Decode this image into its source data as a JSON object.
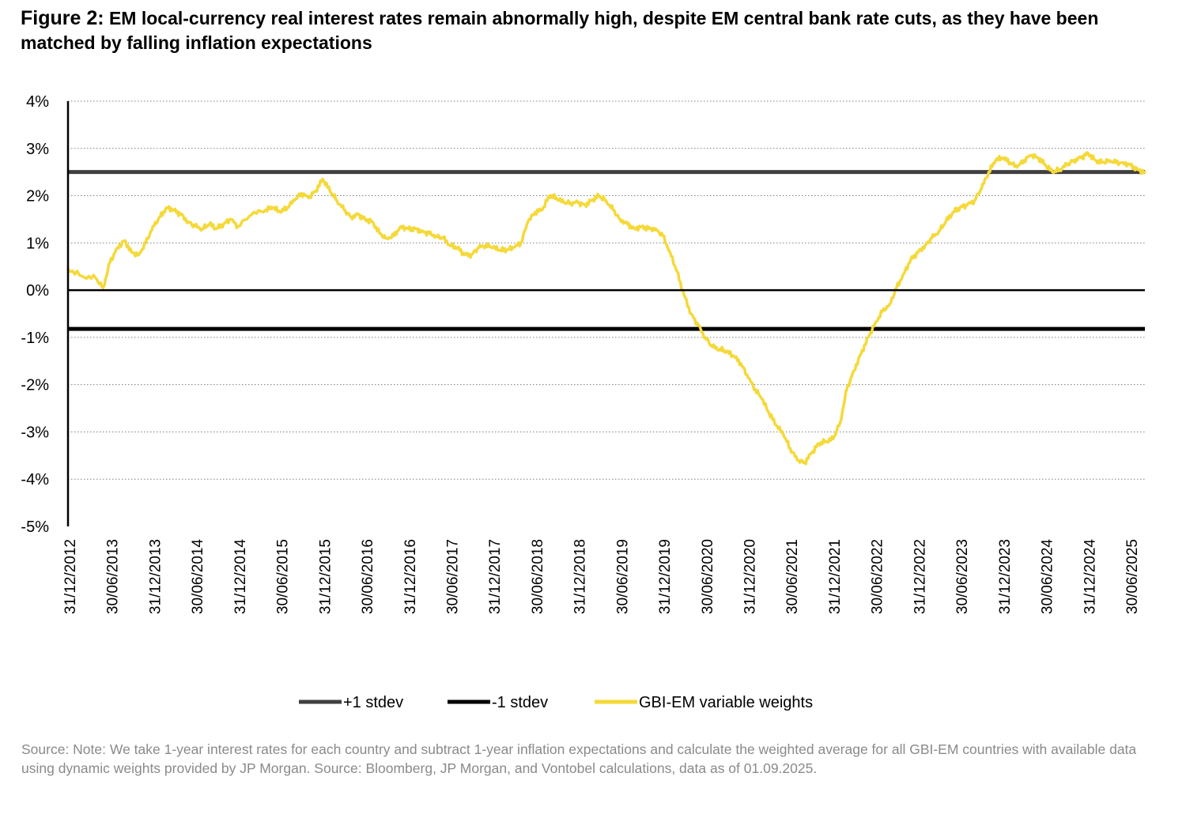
{
  "title": {
    "prefix": "Figure 2:",
    "text": "EM local-currency real interest rates remain abnormally high, despite EM central bank rate cuts, as they have been matched by falling inflation expectations"
  },
  "source": "Source: Note: We take 1-year interest rates for each country and subtract 1-year inflation expectations and calculate the weighted average for all GBI-EM countries with available data using dynamic weights provided by JP Morgan. Source: Bloomberg, JP Morgan, and Vontobel calculations, data as of 01.09.2025.",
  "colors": {
    "plus_stdev": "#404040",
    "minus_stdev": "#000000",
    "series": "#F5D93A",
    "grid": "#7f7f7f"
  },
  "chart_data": {
    "type": "line",
    "ylim": [
      -5,
      4
    ],
    "y_ticks": [
      4,
      3,
      2,
      1,
      0,
      -1,
      -2,
      -3,
      -4,
      -5
    ],
    "y_tick_labels": [
      "4%",
      "3%",
      "2%",
      "1%",
      "0%",
      "-1%",
      "-2%",
      "-3%",
      "-4%",
      "-5%"
    ],
    "y_unit": "%",
    "x_tick_labels": [
      "31/12/2012",
      "30/06/2013",
      "31/12/2013",
      "30/06/2014",
      "31/12/2014",
      "30/06/2015",
      "31/12/2015",
      "30/06/2016",
      "31/12/2016",
      "30/06/2017",
      "31/12/2017",
      "30/06/2018",
      "31/12/2018",
      "30/06/2019",
      "31/12/2019",
      "30/06/2020",
      "31/12/2020",
      "30/06/2021",
      "31/12/2021",
      "30/06/2022",
      "31/12/2022",
      "30/06/2023",
      "31/12/2023",
      "30/06/2024",
      "31/12/2024",
      "30/06/2025"
    ],
    "x_range": [
      "31/12/2012",
      "01/09/2025"
    ],
    "grid": "horizontal dotted",
    "legend_position": "bottom",
    "reference_lines": [
      {
        "name": "+1 stdev",
        "y": 2.5
      },
      {
        "name": "-1 stdev",
        "y": -0.82
      }
    ],
    "series": [
      {
        "name": "GBI-EM variable weights",
        "points": [
          [
            "31/12/2012",
            0.45
          ],
          [
            "28/02/2013",
            0.3
          ],
          [
            "30/04/2013",
            0.25
          ],
          [
            "31/05/2013",
            0.05
          ],
          [
            "30/06/2013",
            0.6
          ],
          [
            "31/07/2013",
            0.9
          ],
          [
            "31/08/2013",
            1.05
          ],
          [
            "30/09/2013",
            0.8
          ],
          [
            "31/10/2013",
            0.75
          ],
          [
            "30/11/2013",
            1.0
          ],
          [
            "31/12/2013",
            1.35
          ],
          [
            "31/01/2014",
            1.55
          ],
          [
            "28/02/2014",
            1.75
          ],
          [
            "31/03/2014",
            1.7
          ],
          [
            "30/04/2014",
            1.6
          ],
          [
            "31/05/2014",
            1.45
          ],
          [
            "30/06/2014",
            1.35
          ],
          [
            "31/07/2014",
            1.3
          ],
          [
            "31/08/2014",
            1.4
          ],
          [
            "30/09/2014",
            1.3
          ],
          [
            "31/10/2014",
            1.4
          ],
          [
            "30/11/2014",
            1.5
          ],
          [
            "31/12/2014",
            1.35
          ],
          [
            "28/02/2015",
            1.6
          ],
          [
            "30/04/2015",
            1.7
          ],
          [
            "31/05/2015",
            1.75
          ],
          [
            "30/06/2015",
            1.65
          ],
          [
            "31/07/2015",
            1.75
          ],
          [
            "31/08/2015",
            1.9
          ],
          [
            "30/09/2015",
            2.05
          ],
          [
            "31/10/2015",
            1.95
          ],
          [
            "30/11/2015",
            2.1
          ],
          [
            "31/12/2015",
            2.35
          ],
          [
            "31/01/2016",
            2.1
          ],
          [
            "29/02/2016",
            1.9
          ],
          [
            "31/03/2016",
            1.7
          ],
          [
            "30/04/2016",
            1.55
          ],
          [
            "31/05/2016",
            1.6
          ],
          [
            "30/06/2016",
            1.5
          ],
          [
            "31/07/2016",
            1.45
          ],
          [
            "31/08/2016",
            1.2
          ],
          [
            "30/09/2016",
            1.1
          ],
          [
            "31/10/2016",
            1.15
          ],
          [
            "30/11/2016",
            1.35
          ],
          [
            "31/12/2016",
            1.3
          ],
          [
            "31/01/2017",
            1.3
          ],
          [
            "28/02/2017",
            1.25
          ],
          [
            "31/03/2017",
            1.2
          ],
          [
            "30/04/2017",
            1.15
          ],
          [
            "31/05/2017",
            1.1
          ],
          [
            "30/06/2017",
            0.95
          ],
          [
            "31/07/2017",
            0.9
          ],
          [
            "31/08/2017",
            0.75
          ],
          [
            "30/09/2017",
            0.75
          ],
          [
            "31/10/2017",
            0.9
          ],
          [
            "30/11/2017",
            0.95
          ],
          [
            "31/12/2017",
            0.9
          ],
          [
            "31/01/2018",
            0.85
          ],
          [
            "28/02/2018",
            0.85
          ],
          [
            "31/03/2018",
            0.9
          ],
          [
            "30/04/2018",
            1.0
          ],
          [
            "31/05/2018",
            1.45
          ],
          [
            "30/06/2018",
            1.65
          ],
          [
            "31/07/2018",
            1.7
          ],
          [
            "31/08/2018",
            2.0
          ],
          [
            "30/09/2018",
            1.95
          ],
          [
            "31/10/2018",
            1.85
          ],
          [
            "30/11/2018",
            1.85
          ],
          [
            "31/12/2018",
            1.85
          ],
          [
            "31/01/2019",
            1.8
          ],
          [
            "28/02/2019",
            1.9
          ],
          [
            "31/03/2019",
            2.0
          ],
          [
            "30/04/2019",
            1.9
          ],
          [
            "31/05/2019",
            1.7
          ],
          [
            "30/06/2019",
            1.5
          ],
          [
            "31/07/2019",
            1.4
          ],
          [
            "31/08/2019",
            1.3
          ],
          [
            "30/09/2019",
            1.35
          ],
          [
            "31/10/2019",
            1.3
          ],
          [
            "30/11/2019",
            1.3
          ],
          [
            "31/12/2019",
            1.15
          ],
          [
            "31/01/2020",
            0.8
          ],
          [
            "29/02/2020",
            0.4
          ],
          [
            "31/03/2020",
            -0.1
          ],
          [
            "30/04/2020",
            -0.5
          ],
          [
            "31/05/2020",
            -0.75
          ],
          [
            "30/06/2020",
            -1.0
          ],
          [
            "31/07/2020",
            -1.2
          ],
          [
            "31/08/2020",
            -1.25
          ],
          [
            "30/09/2020",
            -1.3
          ],
          [
            "31/10/2020",
            -1.4
          ],
          [
            "30/11/2020",
            -1.55
          ],
          [
            "31/12/2020",
            -1.85
          ],
          [
            "31/01/2021",
            -2.1
          ],
          [
            "28/02/2021",
            -2.3
          ],
          [
            "31/03/2021",
            -2.6
          ],
          [
            "30/04/2021",
            -2.85
          ],
          [
            "31/05/2021",
            -3.05
          ],
          [
            "30/06/2021",
            -3.35
          ],
          [
            "31/07/2021",
            -3.6
          ],
          [
            "31/08/2021",
            -3.65
          ],
          [
            "30/09/2021",
            -3.45
          ],
          [
            "31/10/2021",
            -3.25
          ],
          [
            "30/11/2021",
            -3.2
          ],
          [
            "31/12/2021",
            -3.15
          ],
          [
            "31/01/2022",
            -2.8
          ],
          [
            "28/02/2022",
            -2.1
          ],
          [
            "31/03/2022",
            -1.7
          ],
          [
            "30/04/2022",
            -1.35
          ],
          [
            "31/05/2022",
            -1.0
          ],
          [
            "30/06/2022",
            -0.7
          ],
          [
            "31/07/2022",
            -0.45
          ],
          [
            "31/08/2022",
            -0.3
          ],
          [
            "30/09/2022",
            0.05
          ],
          [
            "31/10/2022",
            0.35
          ],
          [
            "30/11/2022",
            0.65
          ],
          [
            "31/12/2022",
            0.8
          ],
          [
            "31/01/2023",
            0.95
          ],
          [
            "28/02/2023",
            1.1
          ],
          [
            "31/03/2023",
            1.25
          ],
          [
            "30/04/2023",
            1.45
          ],
          [
            "31/05/2023",
            1.65
          ],
          [
            "30/06/2023",
            1.75
          ],
          [
            "31/07/2023",
            1.8
          ],
          [
            "31/08/2023",
            1.9
          ],
          [
            "30/09/2023",
            2.15
          ],
          [
            "31/10/2023",
            2.5
          ],
          [
            "30/11/2023",
            2.75
          ],
          [
            "31/12/2023",
            2.8
          ],
          [
            "31/01/2024",
            2.7
          ],
          [
            "29/02/2024",
            2.6
          ],
          [
            "31/03/2024",
            2.75
          ],
          [
            "30/04/2024",
            2.85
          ],
          [
            "31/05/2024",
            2.8
          ],
          [
            "30/06/2024",
            2.65
          ],
          [
            "31/07/2024",
            2.5
          ],
          [
            "31/08/2024",
            2.55
          ],
          [
            "30/09/2024",
            2.65
          ],
          [
            "31/10/2024",
            2.75
          ],
          [
            "30/11/2024",
            2.8
          ],
          [
            "31/12/2024",
            2.9
          ],
          [
            "31/01/2025",
            2.75
          ],
          [
            "28/02/2025",
            2.7
          ],
          [
            "31/03/2025",
            2.75
          ],
          [
            "30/04/2025",
            2.7
          ],
          [
            "31/05/2025",
            2.7
          ],
          [
            "30/06/2025",
            2.65
          ],
          [
            "31/07/2025",
            2.55
          ],
          [
            "01/09/2025",
            2.5
          ]
        ]
      }
    ]
  },
  "legend": {
    "items": [
      {
        "label": "+1 stdev"
      },
      {
        "label": "-1 stdev"
      },
      {
        "label": "GBI-EM variable weights"
      }
    ]
  }
}
